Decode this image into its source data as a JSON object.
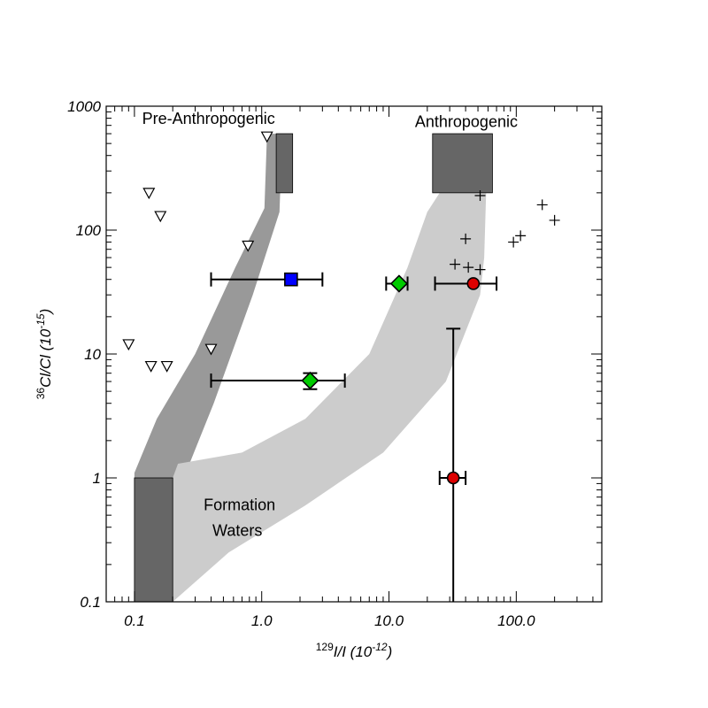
{
  "chart_data": {
    "type": "scatter",
    "xlabel_super": "129",
    "xlabel_main": "I/I (10",
    "xlabel_exp": "-12",
    "xlabel_close": ")",
    "ylabel_super": "36",
    "ylabel_main": "Cl/Cl (10",
    "ylabel_exp": "-15",
    "ylabel_close": ")",
    "xscale": "log",
    "yscale": "log",
    "xlim": [
      0.06,
      470
    ],
    "ylim": [
      0.1,
      1000
    ],
    "xticks": [
      {
        "value": 0.1,
        "label": "0.1"
      },
      {
        "value": 1,
        "label": "1.0"
      },
      {
        "value": 10,
        "label": "10.0"
      },
      {
        "value": 100,
        "label": "100.0"
      }
    ],
    "yticks": [
      {
        "value": 0.1,
        "label": "0.1"
      },
      {
        "value": 1,
        "label": "1"
      },
      {
        "value": 10,
        "label": "10"
      },
      {
        "value": 100,
        "label": "100"
      },
      {
        "value": 1000,
        "label": "1000"
      }
    ],
    "annotations": [
      {
        "text": "Pre-Anthropogenic",
        "x": 0.115,
        "y": 720
      },
      {
        "text": "Anthropogenic",
        "x": 16,
        "y": 680
      },
      {
        "text": "Formation",
        "x": 0.35,
        "y": 0.55
      },
      {
        "text": "Waters",
        "x": 0.41,
        "y": 0.34
      }
    ],
    "bands": [
      {
        "name": "pre-anthropogenic-band",
        "color": "#999999",
        "polygon": [
          [
            1.1,
            600
          ],
          [
            1.45,
            600
          ],
          [
            1.38,
            140
          ],
          [
            0.85,
            30
          ],
          [
            0.42,
            4
          ],
          [
            0.2,
            0.6
          ],
          [
            0.18,
            0.1
          ],
          [
            0.1,
            0.1
          ],
          [
            0.1,
            1.1
          ],
          [
            0.15,
            3
          ],
          [
            0.3,
            10
          ],
          [
            0.62,
            50
          ],
          [
            1.05,
            150
          ]
        ]
      },
      {
        "name": "anthropogenic-band",
        "color": "#cccccc",
        "polygon": [
          [
            25,
            200
          ],
          [
            58,
            200
          ],
          [
            56,
            60
          ],
          [
            52,
            30
          ],
          [
            28,
            6
          ],
          [
            9,
            1.6
          ],
          [
            2.2,
            0.6
          ],
          [
            0.55,
            0.25
          ],
          [
            0.2,
            0.1
          ],
          [
            0.19,
            0.12
          ],
          [
            0.2,
            1.0
          ],
          [
            0.22,
            1.3
          ],
          [
            0.7,
            1.6
          ],
          [
            2.2,
            3
          ],
          [
            7,
            10
          ],
          [
            14,
            50
          ],
          [
            20,
            140
          ]
        ]
      }
    ],
    "boxes": [
      {
        "name": "pre-anthropogenic-box",
        "color": "#666666",
        "x": [
          1.3,
          1.75
        ],
        "y": [
          200,
          600
        ]
      },
      {
        "name": "anthropogenic-box",
        "color": "#666666",
        "x": [
          22,
          65
        ],
        "y": [
          200,
          600
        ]
      },
      {
        "name": "formation-waters-box",
        "color": "#666666",
        "x": [
          0.1,
          0.2
        ],
        "y": [
          0.1,
          1
        ]
      }
    ],
    "series": [
      {
        "marker": "triangle-down",
        "color": "#ffffff",
        "points": [
          [
            0.13,
            200
          ],
          [
            0.16,
            130
          ],
          [
            1.1,
            570
          ],
          [
            0.78,
            75
          ],
          [
            0.09,
            12
          ],
          [
            0.135,
            8
          ],
          [
            0.18,
            8
          ],
          [
            0.4,
            11
          ]
        ]
      },
      {
        "marker": "plus",
        "color": "#000000",
        "points": [
          [
            52,
            190
          ],
          [
            160,
            160
          ],
          [
            200,
            120
          ],
          [
            40,
            85
          ],
          [
            108,
            90
          ],
          [
            95,
            80
          ],
          [
            33,
            53
          ],
          [
            42,
            50
          ],
          [
            52,
            48
          ]
        ]
      },
      {
        "marker": "square",
        "color": "#0000ff",
        "points": [
          {
            "x": 1.7,
            "y": 40,
            "xerr": [
              0.4,
              3.0
            ]
          }
        ]
      },
      {
        "marker": "diamond",
        "color": "#00cc00",
        "points": [
          {
            "x": 12,
            "y": 37,
            "xerr": [
              9.5,
              14
            ]
          },
          {
            "x": 2.4,
            "y": 6.1,
            "xerr": [
              0.4,
              4.5
            ],
            "yerr": [
              5.2,
              7.0
            ]
          }
        ]
      },
      {
        "marker": "circle",
        "color": "#dd0000",
        "points": [
          {
            "x": 46,
            "y": 37,
            "xerr": [
              23,
              70
            ]
          },
          {
            "x": 32,
            "y": 1.0,
            "xerr": [
              25,
              40
            ],
            "yerr": [
              0.1,
              16
            ]
          }
        ]
      }
    ]
  }
}
